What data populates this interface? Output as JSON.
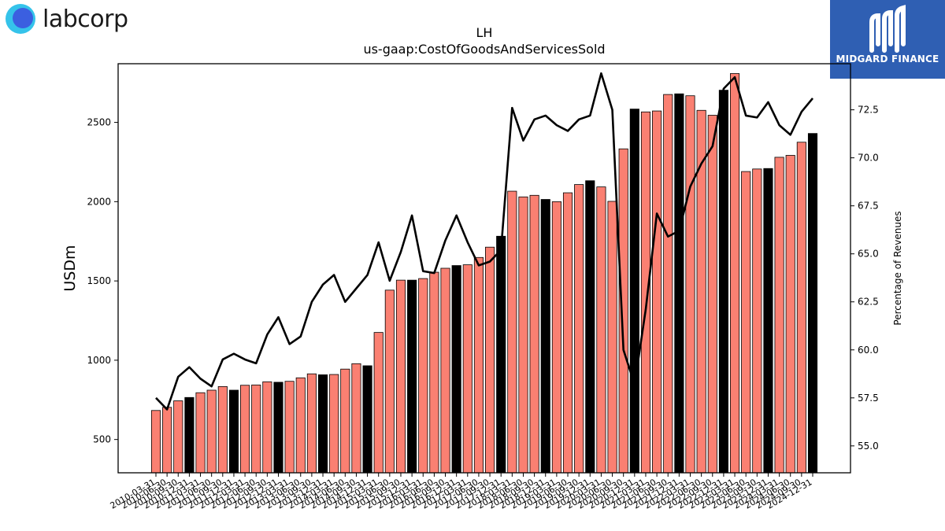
{
  "brand": {
    "name": "labcorp"
  },
  "partner": {
    "name": "MIDGARD FINANCE"
  },
  "chart_data": {
    "type": "bar",
    "title": "LH",
    "subtitle": "us-gaap:CostOfGoodsAndServicesSold",
    "ylabel": "USDm",
    "y2label": "Percentage of Revenues",
    "ylim": [
      290,
      2870
    ],
    "y2lim": [
      53.6,
      74.9
    ],
    "yticks": [
      500,
      1000,
      1500,
      2000,
      2500
    ],
    "y2ticks": [
      55.0,
      57.5,
      60.0,
      62.5,
      65.0,
      67.5,
      70.0,
      72.5
    ],
    "bar_colors": {
      "quarter": "#fa8072",
      "year_end": "#000000"
    },
    "line_color": "#000000",
    "categories": [
      "2010-03-31",
      "2010-06-30",
      "2010-09-30",
      "2010-12-31",
      "2011-03-31",
      "2011-06-30",
      "2011-09-30",
      "2011-12-31",
      "2012-03-31",
      "2012-06-30",
      "2012-09-30",
      "2012-12-31",
      "2013-03-31",
      "2013-06-30",
      "2013-09-30",
      "2013-12-31",
      "2014-03-31",
      "2014-06-30",
      "2014-09-30",
      "2014-12-31",
      "2015-03-31",
      "2015-06-30",
      "2015-09-30",
      "2015-12-31",
      "2016-03-31",
      "2016-06-30",
      "2016-09-30",
      "2016-12-31",
      "2017-03-31",
      "2017-06-30",
      "2017-09-30",
      "2017-12-31",
      "2018-03-31",
      "2018-06-30",
      "2018-09-30",
      "2018-12-31",
      "2019-03-31",
      "2019-06-30",
      "2019-09-30",
      "2019-12-31",
      "2020-03-31",
      "2020-06-30",
      "2020-09-30",
      "2020-12-31",
      "2021-03-31",
      "2021-06-30",
      "2021-09-30",
      "2021-12-31",
      "2022-03-31",
      "2022-06-30",
      "2022-09-30",
      "2022-12-31",
      "2023-03-31",
      "2023-06-30",
      "2023-09-30",
      "2023-12-31",
      "2024-03-31",
      "2024-06-30",
      "2024-09-30",
      "2024-12-31"
    ],
    "series": [
      {
        "type": "bar",
        "values": [
          683,
          703,
          744,
          765,
          795,
          811,
          834,
          811,
          842,
          844,
          864,
          861,
          867,
          889,
          914,
          908,
          910,
          944,
          978,
          965,
          1175,
          1442,
          1505,
          1505,
          1515,
          1555,
          1580,
          1597,
          1602,
          1648,
          1713,
          1782,
          2066,
          2030,
          2040,
          2014,
          2000,
          2056,
          2108,
          2132,
          2093,
          2002,
          2333,
          2584,
          2566,
          2572,
          2676,
          2680,
          2668,
          2576,
          2545,
          2703,
          2808,
          2190,
          2206,
          2209,
          2280,
          2292,
          2375,
          2430
        ],
        "year_end": [
          false,
          false,
          false,
          true,
          false,
          false,
          false,
          true,
          false,
          false,
          false,
          true,
          false,
          false,
          false,
          true,
          false,
          false,
          false,
          true,
          false,
          false,
          false,
          true,
          false,
          false,
          false,
          true,
          false,
          false,
          false,
          true,
          false,
          false,
          false,
          true,
          false,
          false,
          false,
          true,
          false,
          false,
          false,
          true,
          false,
          false,
          false,
          true,
          false,
          false,
          false,
          true,
          false,
          false,
          false,
          true,
          false,
          false,
          false,
          true
        ]
      },
      {
        "type": "line",
        "axis": "right",
        "values": [
          57.5,
          56.9,
          58.6,
          59.1,
          58.5,
          58.1,
          59.5,
          59.8,
          59.5,
          59.3,
          60.8,
          61.7,
          60.3,
          60.7,
          62.5,
          63.4,
          63.9,
          62.5,
          63.2,
          63.9,
          65.6,
          63.6,
          65.1,
          67.0,
          64.1,
          64.0,
          65.7,
          67.0,
          65.6,
          64.4,
          64.6,
          65.2,
          72.6,
          70.9,
          72.0,
          72.2,
          71.7,
          71.4,
          72.0,
          72.2,
          74.4,
          72.5,
          60.0,
          58.2,
          62.1,
          67.1,
          65.9,
          66.2,
          68.5,
          69.7,
          70.6,
          73.6,
          74.2,
          72.2,
          72.1,
          72.9,
          71.7,
          71.2,
          72.4,
          73.1
        ]
      }
    ]
  }
}
